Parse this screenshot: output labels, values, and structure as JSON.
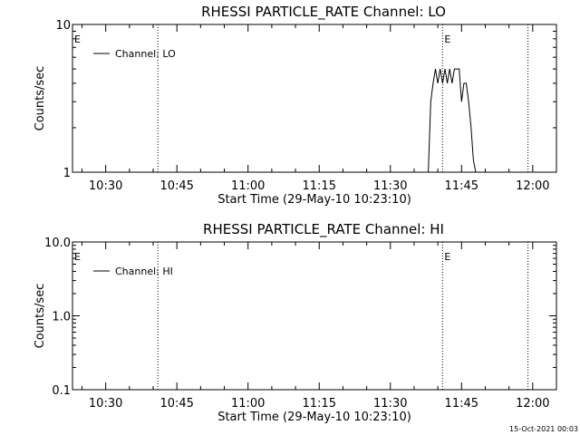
{
  "chart_data": [
    {
      "type": "line",
      "title": "RHESSI PARTICLE_RATE Channel: LO",
      "xlabel": "Start Time (29-May-10 10:23:10)",
      "ylabel": "Counts/sec",
      "yscale": "log",
      "ylim": [
        1,
        10
      ],
      "xlim": [
        "10:23",
        "12:05"
      ],
      "y_ticks": [
        "1",
        "10"
      ],
      "x_ticks": [
        "10:30",
        "10:45",
        "11:00",
        "11:15",
        "11:30",
        "11:45",
        "12:00"
      ],
      "legend": {
        "placement": "top-left",
        "entries": [
          "Channel: LO"
        ]
      },
      "event_markers": [
        {
          "label": "E",
          "time": "10:23"
        },
        {
          "label": "",
          "time": "10:41"
        },
        {
          "label": "E",
          "time": "11:41"
        },
        {
          "label": "",
          "time": "11:59"
        }
      ],
      "series": [
        {
          "name": "Channel: LO",
          "x": [
            "11:38",
            "11:38.5",
            "11:39",
            "11:39.5",
            "11:40",
            "11:40.5",
            "11:41",
            "11:41.5",
            "11:42",
            "11:42.5",
            "11:43",
            "11:43.5",
            "11:44",
            "11:44.5",
            "11:45",
            "11:45.5",
            "11:46",
            "11:46.5",
            "11:47",
            "11:47.5",
            "11:48"
          ],
          "y": [
            1,
            3,
            4,
            5,
            4,
            5,
            4,
            5,
            4,
            5,
            4,
            5,
            5,
            5,
            3,
            4,
            4,
            3,
            2,
            1.2,
            1
          ]
        }
      ]
    },
    {
      "type": "line",
      "title": "RHESSI PARTICLE_RATE Channel: HI",
      "xlabel": "Start Time (29-May-10 10:23:10)",
      "ylabel": "Counts/sec",
      "yscale": "log",
      "ylim": [
        0.1,
        10
      ],
      "xlim": [
        "10:23",
        "12:05"
      ],
      "y_ticks": [
        "0.1",
        "1.0",
        "10.0"
      ],
      "x_ticks": [
        "10:30",
        "10:45",
        "11:00",
        "11:15",
        "11:30",
        "11:45",
        "12:00"
      ],
      "legend": {
        "placement": "top-left",
        "entries": [
          "Channel: HI"
        ]
      },
      "event_markers": [
        {
          "label": "E",
          "time": "10:23"
        },
        {
          "label": "",
          "time": "10:41"
        },
        {
          "label": "E",
          "time": "11:41"
        },
        {
          "label": "",
          "time": "11:59"
        }
      ],
      "series": [
        {
          "name": "Channel: HI",
          "x": [],
          "y": []
        }
      ]
    }
  ],
  "footer": {
    "timestamp": "15-Oct-2021 00:03"
  }
}
